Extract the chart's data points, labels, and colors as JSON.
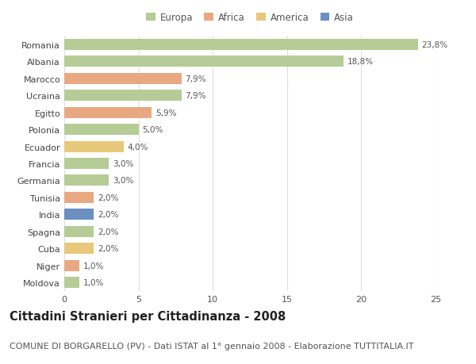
{
  "categories": [
    "Moldova",
    "Niger",
    "Cuba",
    "Spagna",
    "India",
    "Tunisia",
    "Germania",
    "Francia",
    "Ecuador",
    "Polonia",
    "Egitto",
    "Ucraina",
    "Marocco",
    "Albania",
    "Romania"
  ],
  "values": [
    1.0,
    1.0,
    2.0,
    2.0,
    2.0,
    2.0,
    3.0,
    3.0,
    4.0,
    5.0,
    5.9,
    7.9,
    7.9,
    18.8,
    23.8
  ],
  "labels": [
    "1,0%",
    "1,0%",
    "2,0%",
    "2,0%",
    "2,0%",
    "2,0%",
    "3,0%",
    "3,0%",
    "4,0%",
    "5,0%",
    "5,9%",
    "7,9%",
    "7,9%",
    "18,8%",
    "23,8%"
  ],
  "colors": [
    "#b5cc96",
    "#e8a882",
    "#e8c87a",
    "#b5cc96",
    "#6a8fc0",
    "#e8a882",
    "#b5cc96",
    "#b5cc96",
    "#e8c87a",
    "#b5cc96",
    "#e8a882",
    "#b5cc96",
    "#e8a882",
    "#b5cc96",
    "#b5cc96"
  ],
  "legend_labels": [
    "Europa",
    "Africa",
    "America",
    "Asia"
  ],
  "legend_colors": [
    "#b5cc96",
    "#e8a882",
    "#e8c87a",
    "#6a8fc0"
  ],
  "title": "Cittadini Stranieri per Cittadinanza - 2008",
  "subtitle": "COMUNE DI BORGARELLO (PV) - Dati ISTAT al 1° gennaio 2008 - Elaborazione TUTTITALIA.IT",
  "xlim": [
    0,
    25
  ],
  "xticks": [
    0,
    5,
    10,
    15,
    20,
    25
  ],
  "background_color": "#ffffff",
  "grid_color": "#e0e0e0",
  "bar_height": 0.65,
  "title_fontsize": 10.5,
  "subtitle_fontsize": 8,
  "label_fontsize": 7.5,
  "ytick_fontsize": 8,
  "xtick_fontsize": 8,
  "legend_fontsize": 8.5
}
